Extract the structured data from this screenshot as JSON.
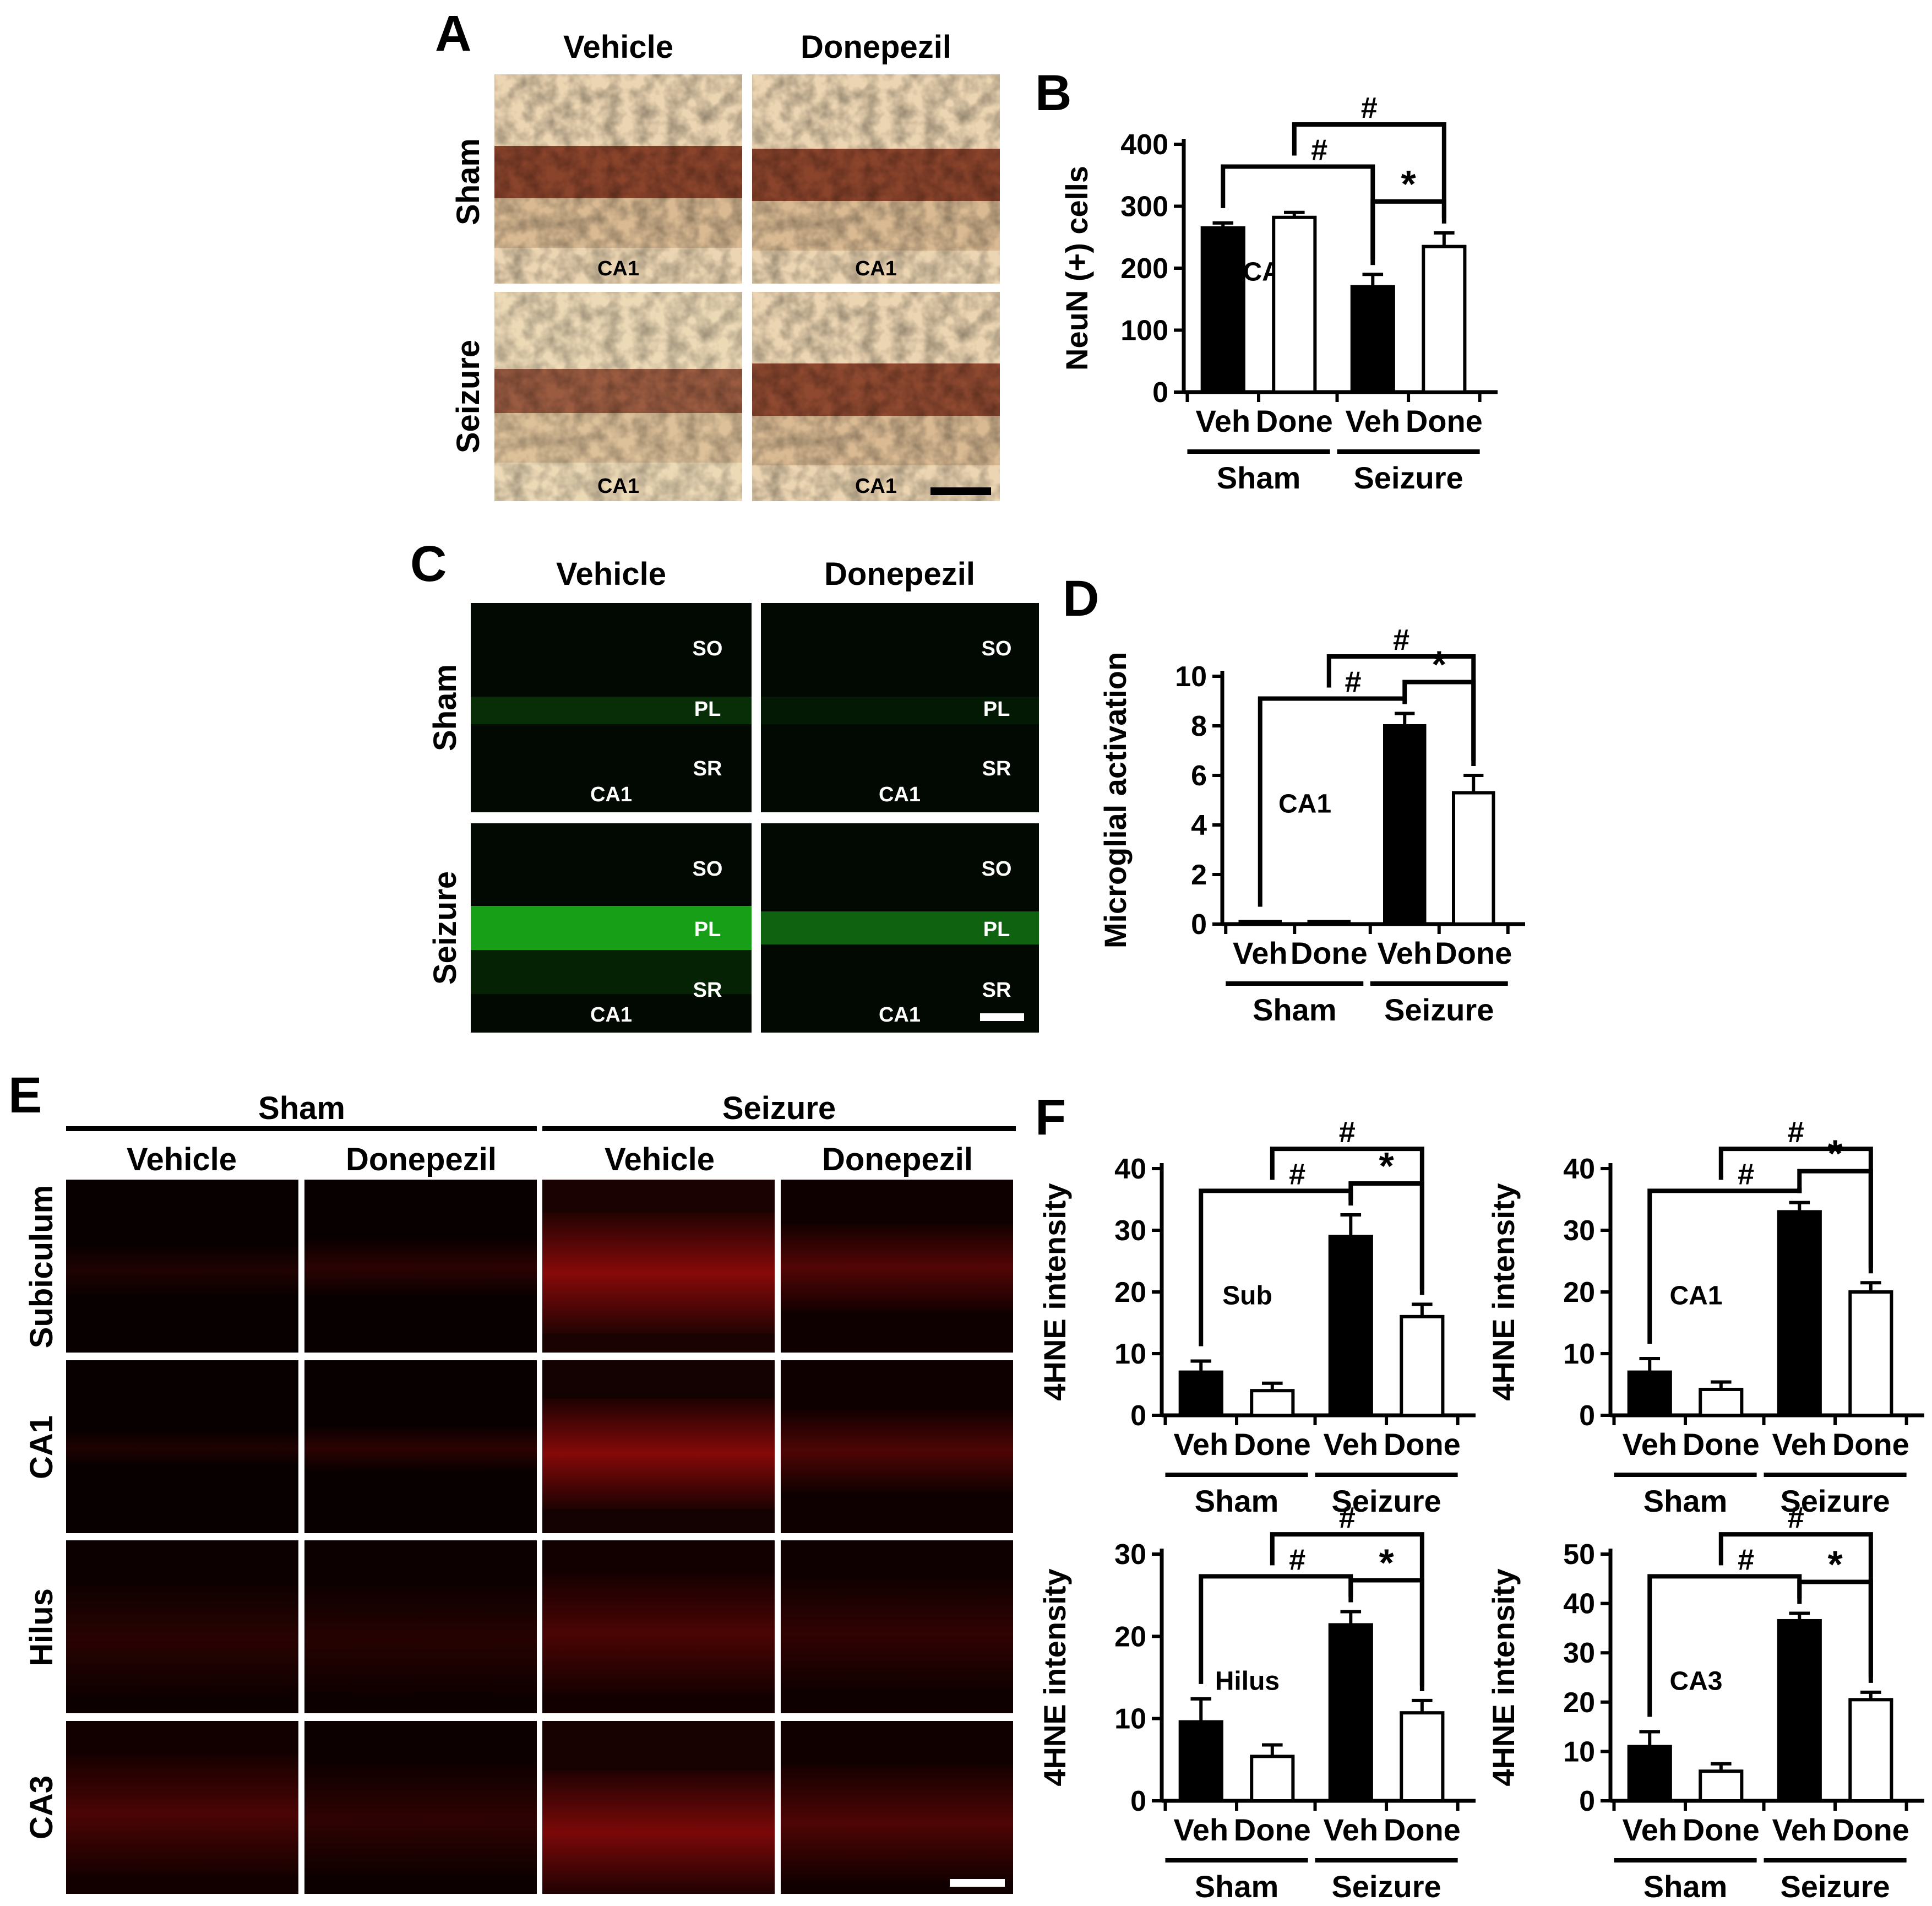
{
  "panel_labels": {
    "A": "A",
    "B": "B",
    "C": "C",
    "D": "D",
    "E": "E",
    "F": "F"
  },
  "panel_a": {
    "columns": [
      "Vehicle",
      "Donepezil"
    ],
    "rows": [
      "Sham",
      "Seizure"
    ],
    "region_label": "CA1"
  },
  "panel_c": {
    "columns": [
      "Vehicle",
      "Donepezil"
    ],
    "rows": [
      "Sham",
      "Seizure"
    ],
    "layers": [
      "SO",
      "PL",
      "SR"
    ],
    "region_label": "CA1"
  },
  "panel_e": {
    "groups": [
      "Sham",
      "Seizure"
    ],
    "columns": [
      "Vehicle",
      "Donepezil",
      "Vehicle",
      "Donepezil"
    ],
    "rows": [
      "Subiculum",
      "CA1",
      "Hilus",
      "CA3"
    ]
  },
  "colors": {
    "veh_bar": "#000000",
    "done_bar": "#ffffff",
    "neun": "#7a2a14",
    "iba1": "#22e022",
    "hne": "#e01010"
  },
  "chart_data": [
    {
      "id": "B",
      "type": "bar",
      "ylabel": "NeuN (+) cells",
      "region": "CA1",
      "categories": [
        "Veh",
        "Done",
        "Veh",
        "Done"
      ],
      "groups": [
        "Sham",
        "Seizure"
      ],
      "values": [
        265,
        282,
        170,
        235
      ],
      "errors": [
        8,
        8,
        20,
        22
      ],
      "ylim": [
        0,
        400
      ],
      "yticks": [
        0,
        100,
        200,
        300,
        400
      ],
      "marks": [
        "#",
        "#",
        "*"
      ]
    },
    {
      "id": "D",
      "type": "bar",
      "ylabel": "Microglial activation",
      "region": "CA1",
      "categories": [
        "Veh",
        "Done",
        "Veh",
        "Done"
      ],
      "groups": [
        "Sham",
        "Seizure"
      ],
      "values": [
        0.1,
        0.1,
        8.0,
        5.3
      ],
      "errors": [
        0,
        0,
        0.5,
        0.7
      ],
      "ylim": [
        0,
        10
      ],
      "yticks": [
        0,
        2,
        4,
        6,
        8,
        10
      ],
      "marks": [
        "#",
        "#",
        "*"
      ]
    },
    {
      "id": "F-Sub",
      "type": "bar",
      "ylabel": "4HNE intensity",
      "region": "Sub",
      "categories": [
        "Veh",
        "Done",
        "Veh",
        "Done"
      ],
      "groups": [
        "Sham",
        "Seizure"
      ],
      "values": [
        7,
        4,
        29,
        16
      ],
      "errors": [
        1.8,
        1.2,
        3.5,
        2
      ],
      "ylim": [
        0,
        40
      ],
      "yticks": [
        0,
        10,
        20,
        30,
        40
      ],
      "marks": [
        "#",
        "#",
        "*"
      ]
    },
    {
      "id": "F-CA1",
      "type": "bar",
      "ylabel": "4HNE intensity",
      "region": "CA1",
      "categories": [
        "Veh",
        "Done",
        "Veh",
        "Done"
      ],
      "groups": [
        "Sham",
        "Seizure"
      ],
      "values": [
        7,
        4.2,
        33,
        20
      ],
      "errors": [
        2.2,
        1.2,
        1.5,
        1.5
      ],
      "ylim": [
        0,
        40
      ],
      "yticks": [
        0,
        10,
        20,
        30,
        40
      ],
      "marks": [
        "#",
        "#",
        "*"
      ]
    },
    {
      "id": "F-Hilus",
      "type": "bar",
      "ylabel": "4HNE intensity",
      "region": "Hilus",
      "categories": [
        "Veh",
        "Done",
        "Veh",
        "Done"
      ],
      "groups": [
        "Sham",
        "Seizure"
      ],
      "values": [
        9.6,
        5.4,
        21.4,
        10.7
      ],
      "errors": [
        2.8,
        1.4,
        1.6,
        1.5
      ],
      "ylim": [
        0,
        30
      ],
      "yticks": [
        0,
        10,
        20,
        30
      ],
      "marks": [
        "#",
        "#",
        "*"
      ]
    },
    {
      "id": "F-CA3",
      "type": "bar",
      "ylabel": "4HNE intensity",
      "region": "CA3",
      "categories": [
        "Veh",
        "Done",
        "Veh",
        "Done"
      ],
      "groups": [
        "Sham",
        "Seizure"
      ],
      "values": [
        11,
        6,
        36.5,
        20.5
      ],
      "errors": [
        3,
        1.5,
        1.5,
        1.5
      ],
      "ylim": [
        0,
        50
      ],
      "yticks": [
        0,
        10,
        20,
        30,
        40,
        50
      ],
      "marks": [
        "#",
        "#",
        "*"
      ]
    }
  ]
}
